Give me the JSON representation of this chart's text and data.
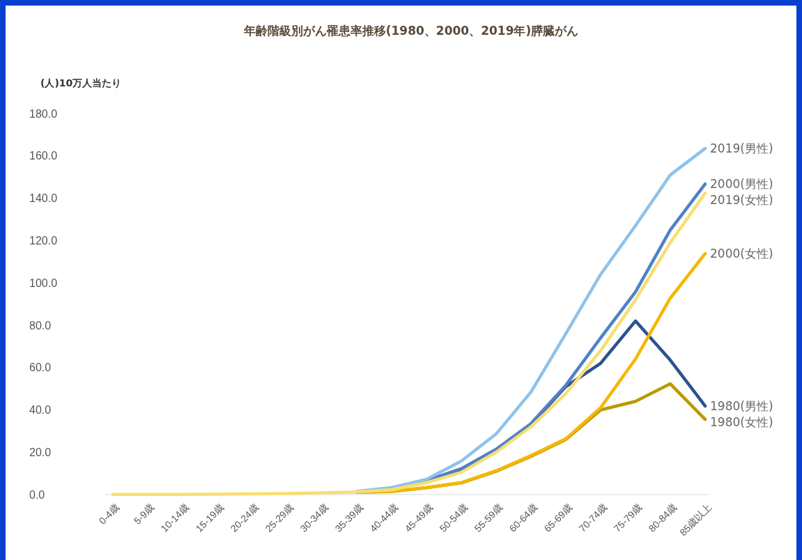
{
  "chart_data": {
    "type": "line",
    "title": "年齢階級別がん罹患率推移(1980、2000、2019年)膵臓がん",
    "ylabel": "(人)10万人当たり",
    "categories": [
      "0-4歳",
      "5-9歳",
      "10-14歳",
      "15-19歳",
      "20-24歳",
      "25-29歳",
      "30-34歳",
      "35-39歳",
      "40-44歳",
      "45-49歳",
      "50-54歳",
      "55-59歳",
      "60-64歳",
      "65-69歳",
      "70-74歳",
      "75-79歳",
      "80-84歳",
      "85歳以上"
    ],
    "ylim": [
      0,
      180
    ],
    "yticks": [
      {
        "value": 0,
        "label": "0.0"
      },
      {
        "value": 20,
        "label": "20.0"
      },
      {
        "value": 40,
        "label": "40.0"
      },
      {
        "value": 60,
        "label": "60.0"
      },
      {
        "value": 80,
        "label": "80.0"
      },
      {
        "value": 100,
        "label": "100.0"
      },
      {
        "value": 120,
        "label": "120.0"
      },
      {
        "value": 140,
        "label": "140.0"
      },
      {
        "value": 160,
        "label": "160.0"
      },
      {
        "value": 180,
        "label": "180.0"
      }
    ],
    "grid": false,
    "legend": false,
    "marker": "none",
    "line_style": "solid",
    "series": [
      {
        "name": "1980(男性)",
        "color": "#2b5190",
        "values": [
          null,
          null,
          null,
          null,
          null,
          null,
          null,
          null,
          null,
          6.3,
          12,
          21,
          33,
          51,
          62,
          82,
          63.5,
          41.8
        ]
      },
      {
        "name": "1980(女性)",
        "color": "#b99a00",
        "values": [
          null,
          null,
          null,
          null,
          null,
          null,
          null,
          1.1,
          1.4,
          3.2,
          5.5,
          11,
          18,
          26,
          40,
          44,
          52.3,
          35.5
        ]
      },
      {
        "name": "2000(女性)",
        "color": "#f5b700",
        "values": [
          null,
          null,
          null,
          null,
          null,
          null,
          null,
          1.2,
          1.5,
          3.3,
          5.6,
          11.2,
          18.4,
          26.3,
          41,
          64,
          92.8,
          113.8
        ]
      },
      {
        "name": "2000(男性)",
        "color": "#4f81c7",
        "values": [
          null,
          null,
          null,
          null,
          null,
          null,
          null,
          1.3,
          2.8,
          6.6,
          12.2,
          21.4,
          33.5,
          51.6,
          74,
          95.7,
          125,
          146.7
        ]
      },
      {
        "name": "2019(男性)",
        "color": "#8fc2ea",
        "values": [
          null,
          null,
          null,
          null,
          null,
          null,
          null,
          1.5,
          3.3,
          7.2,
          15.8,
          28.6,
          48.4,
          76,
          104,
          127,
          151,
          163.5
        ]
      },
      {
        "name": "2019(女性)",
        "color": "#f8de72",
        "values": [
          0.1,
          0.1,
          0.1,
          0.2,
          0.3,
          0.5,
          0.8,
          1.2,
          2.3,
          5.6,
          10.5,
          20,
          32,
          47.7,
          68,
          92,
          119,
          142.4
        ]
      }
    ]
  }
}
